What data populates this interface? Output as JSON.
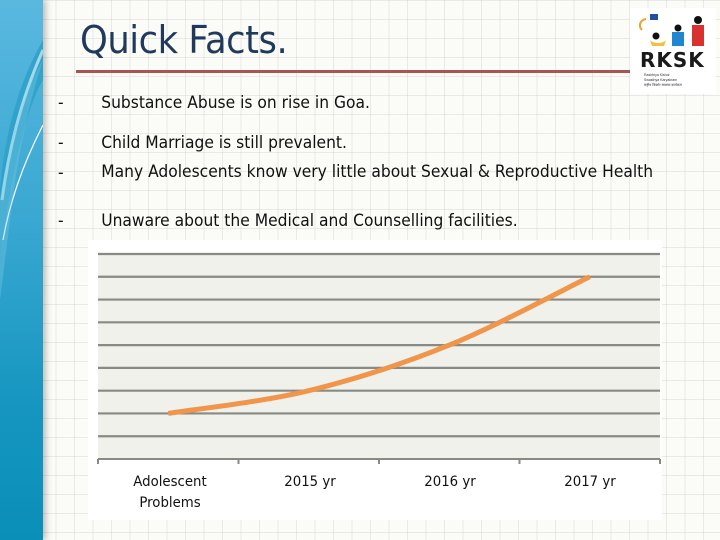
{
  "slide": {
    "title": "Quick Facts.",
    "bullets": [
      {
        "marker": "-",
        "text": "Substance Abuse is on rise in Goa."
      },
      {
        "marker": "-",
        "text": "Child Marriage is still prevalent."
      },
      {
        "marker": "-",
        "text": "Many Adolescents know very little about Sexual & Reproductive Health"
      },
      {
        "marker": "-",
        "text": "Unaware about the Medical and Counselling facilities."
      }
    ],
    "logo": {
      "name": "RKSK",
      "subtitle_lines": [
        "Rashtriya Kishor",
        "Swasthya Karyakram",
        "राष्ट्रीय किशोर स्वास्थ्य कार्यक्रम"
      ],
      "icon": "adolescent-figures-logo-icon"
    }
  },
  "colors": {
    "title": "#1f3a5c",
    "title_rule": "#a85550",
    "line": "#f0954a",
    "gridline": "#878a85",
    "plot_bg": "#f0f1ea",
    "sidebar": "#1596c0"
  },
  "chart_data": {
    "type": "line",
    "title": "",
    "xlabel": "",
    "ylabel": "",
    "categories": [
      "Adolescent Problems",
      "2015 yr",
      "2016 yr",
      "2017 yr"
    ],
    "series": [
      {
        "name": "Adolescent Problems",
        "values": [
          2,
          3,
          5,
          8
        ]
      }
    ],
    "ylim": [
      0,
      9
    ],
    "y_gridlines": 9,
    "grid": true,
    "y_tick_labels_visible": false,
    "legend": "none"
  }
}
